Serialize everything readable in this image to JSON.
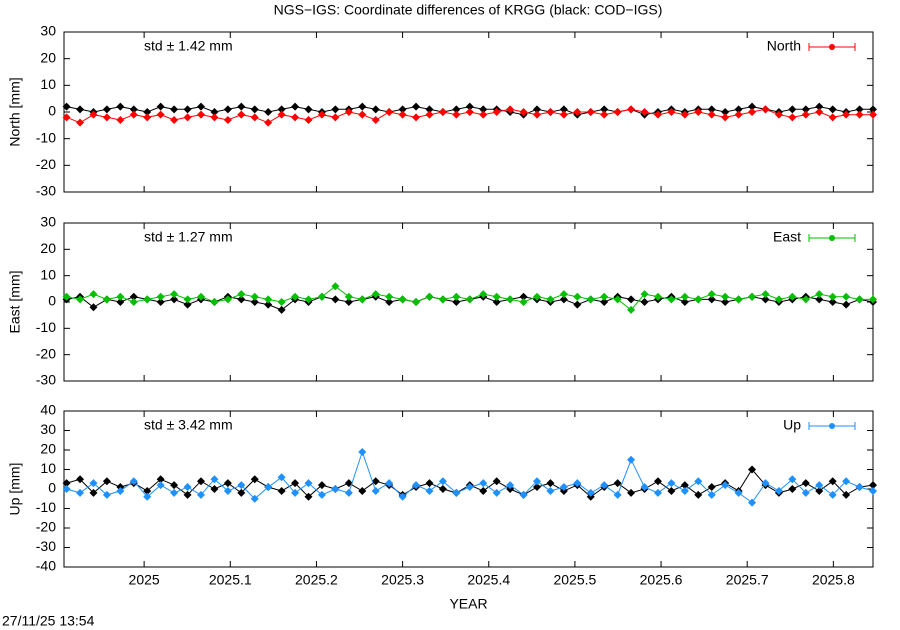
{
  "timestamp": "27/11/25 13:54",
  "chart_data": [
    {
      "type": "line",
      "title": "NGS−IGS: Coordinate differences of KRGG (black: COD−IGS)",
      "ylabel": "North [mm]",
      "annotation": "std ± 1.42 mm",
      "legend": "top right",
      "xlim": [
        2024.907,
        2025.846
      ],
      "xticks": [
        2025,
        2025.1,
        2025.2,
        2025.3,
        2025.4,
        2025.5,
        2025.6,
        2025.7,
        2025.8
      ],
      "ylim": [
        -30,
        30
      ],
      "yticks": [
        -30,
        -20,
        -10,
        0,
        10,
        20,
        30
      ],
      "x": [
        2024.91,
        2024.9256,
        2024.9412,
        2024.9568,
        2024.9724,
        2024.988,
        2025.0036,
        2025.0192,
        2025.0348,
        2025.0504,
        2025.066,
        2025.0816,
        2025.0972,
        2025.1128,
        2025.1284,
        2025.144,
        2025.1596,
        2025.1752,
        2025.1908,
        2025.2064,
        2025.222,
        2025.2376,
        2025.2532,
        2025.2688,
        2025.2844,
        2025.3,
        2025.3156,
        2025.3312,
        2025.3468,
        2025.3624,
        2025.378,
        2025.3936,
        2025.4092,
        2025.4248,
        2025.4404,
        2025.456,
        2025.4716,
        2025.4872,
        2025.5028,
        2025.5184,
        2025.534,
        2025.5496,
        2025.5652,
        2025.5808,
        2025.5964,
        2025.612,
        2025.6276,
        2025.6432,
        2025.6588,
        2025.6744,
        2025.69,
        2025.7056,
        2025.7212,
        2025.7368,
        2025.7524,
        2025.768,
        2025.7836,
        2025.7992,
        2025.8148,
        2025.8304,
        2025.846
      ],
      "series": [
        {
          "color": "#000000",
          "values": [
            2,
            1,
            0,
            1,
            2,
            1,
            0,
            2,
            1,
            1,
            2,
            0,
            1,
            2,
            1,
            0,
            1,
            2,
            1,
            0,
            1,
            1,
            2,
            1,
            0,
            1,
            2,
            1,
            0,
            1,
            2,
            1,
            1,
            0,
            -1,
            1,
            0,
            1,
            -1,
            0,
            1,
            0,
            1,
            -1,
            0,
            1,
            0,
            1,
            1,
            0,
            1,
            2,
            1,
            0,
            1,
            1,
            2,
            1,
            0,
            1,
            1
          ]
        },
        {
          "name": "North",
          "color": "#ff0000",
          "values": [
            -2,
            -4,
            -1,
            -2,
            -3,
            -1,
            -2,
            -1,
            -3,
            -2,
            -1,
            -2,
            -3,
            -1,
            -2,
            -4,
            -1,
            -2,
            -3,
            -1,
            -2,
            0,
            -1,
            -3,
            0,
            -1,
            -2,
            -1,
            0,
            -1,
            0,
            -1,
            0,
            1,
            0,
            -1,
            0,
            -1,
            0,
            0,
            -1,
            0,
            1,
            0,
            -1,
            0,
            -1,
            0,
            -1,
            -2,
            -1,
            0,
            1,
            -1,
            -2,
            -1,
            0,
            -2,
            -1,
            -1,
            -1
          ]
        }
      ]
    },
    {
      "type": "line",
      "ylabel": "East [mm]",
      "annotation": "std ± 1.27 mm",
      "legend": "top right",
      "xlim": [
        2024.907,
        2025.846
      ],
      "xticks": [
        2025,
        2025.1,
        2025.2,
        2025.3,
        2025.4,
        2025.5,
        2025.6,
        2025.7,
        2025.8
      ],
      "ylim": [
        -30,
        30
      ],
      "yticks": [
        -30,
        -20,
        -10,
        0,
        10,
        20,
        30
      ],
      "x": [
        2024.91,
        2024.9256,
        2024.9412,
        2024.9568,
        2024.9724,
        2024.988,
        2025.0036,
        2025.0192,
        2025.0348,
        2025.0504,
        2025.066,
        2025.0816,
        2025.0972,
        2025.1128,
        2025.1284,
        2025.144,
        2025.1596,
        2025.1752,
        2025.1908,
        2025.2064,
        2025.222,
        2025.2376,
        2025.2532,
        2025.2688,
        2025.2844,
        2025.3,
        2025.3156,
        2025.3312,
        2025.3468,
        2025.3624,
        2025.378,
        2025.3936,
        2025.4092,
        2025.4248,
        2025.4404,
        2025.456,
        2025.4716,
        2025.4872,
        2025.5028,
        2025.5184,
        2025.534,
        2025.5496,
        2025.5652,
        2025.5808,
        2025.5964,
        2025.612,
        2025.6276,
        2025.6432,
        2025.6588,
        2025.6744,
        2025.69,
        2025.7056,
        2025.7212,
        2025.7368,
        2025.7524,
        2025.768,
        2025.7836,
        2025.7992,
        2025.8148,
        2025.8304,
        2025.846
      ],
      "series": [
        {
          "color": "#000000",
          "values": [
            1,
            2,
            -2,
            1,
            0,
            2,
            1,
            0,
            1,
            -1,
            1,
            0,
            2,
            1,
            0,
            -1,
            -3,
            1,
            0,
            2,
            1,
            0,
            1,
            2,
            0,
            1,
            0,
            2,
            1,
            0,
            1,
            2,
            0,
            1,
            2,
            1,
            0,
            1,
            -1,
            1,
            0,
            2,
            1,
            0,
            1,
            2,
            0,
            1,
            1,
            0,
            1,
            2,
            1,
            0,
            1,
            2,
            1,
            0,
            -1,
            1,
            0
          ]
        },
        {
          "name": "East",
          "color": "#00c000",
          "values": [
            2,
            1,
            3,
            1,
            2,
            0,
            1,
            2,
            3,
            1,
            2,
            0,
            1,
            3,
            2,
            1,
            0,
            2,
            1,
            2,
            6,
            2,
            1,
            3,
            2,
            1,
            0,
            2,
            1,
            2,
            1,
            3,
            2,
            1,
            0,
            2,
            1,
            3,
            2,
            1,
            2,
            1,
            -3,
            3,
            2,
            1,
            2,
            1,
            3,
            2,
            1,
            2,
            3,
            1,
            2,
            1,
            3,
            2,
            2,
            1,
            1
          ]
        }
      ]
    },
    {
      "type": "line",
      "ylabel": "Up [mm]",
      "xlabel": "YEAR",
      "annotation": "std ± 3.42 mm",
      "legend": "top right",
      "xlim": [
        2024.907,
        2025.846
      ],
      "xticks": [
        2025,
        2025.1,
        2025.2,
        2025.3,
        2025.4,
        2025.5,
        2025.6,
        2025.7,
        2025.8
      ],
      "ylim": [
        -40,
        40
      ],
      "yticks": [
        -40,
        -30,
        -20,
        -10,
        0,
        10,
        20,
        30,
        40
      ],
      "x": [
        2024.91,
        2024.9256,
        2024.9412,
        2024.9568,
        2024.9724,
        2024.988,
        2025.0036,
        2025.0192,
        2025.0348,
        2025.0504,
        2025.066,
        2025.0816,
        2025.0972,
        2025.1128,
        2025.1284,
        2025.144,
        2025.1596,
        2025.1752,
        2025.1908,
        2025.2064,
        2025.222,
        2025.2376,
        2025.2532,
        2025.2688,
        2025.2844,
        2025.3,
        2025.3156,
        2025.3312,
        2025.3468,
        2025.3624,
        2025.378,
        2025.3936,
        2025.4092,
        2025.4248,
        2025.4404,
        2025.456,
        2025.4716,
        2025.4872,
        2025.5028,
        2025.5184,
        2025.534,
        2025.5496,
        2025.5652,
        2025.5808,
        2025.5964,
        2025.612,
        2025.6276,
        2025.6432,
        2025.6588,
        2025.6744,
        2025.69,
        2025.7056,
        2025.7212,
        2025.7368,
        2025.7524,
        2025.768,
        2025.7836,
        2025.7992,
        2025.8148,
        2025.8304,
        2025.846
      ],
      "series": [
        {
          "color": "#000000",
          "values": [
            3,
            5,
            -2,
            4,
            1,
            3,
            -1,
            5,
            2,
            -3,
            4,
            0,
            3,
            -2,
            5,
            1,
            -1,
            3,
            -4,
            2,
            0,
            3,
            -1,
            4,
            2,
            -3,
            1,
            3,
            0,
            -2,
            2,
            -1,
            4,
            0,
            -3,
            1,
            3,
            -1,
            2,
            -4,
            1,
            3,
            -2,
            0,
            4,
            -1,
            2,
            -3,
            1,
            3,
            -1,
            10,
            2,
            -2,
            0,
            3,
            -1,
            4,
            -3,
            1,
            2
          ]
        },
        {
          "name": "Up",
          "color": "#1e90ff",
          "values": [
            0,
            -2,
            3,
            -3,
            -1,
            4,
            -4,
            2,
            -2,
            1,
            -3,
            5,
            -1,
            2,
            -5,
            1,
            6,
            -2,
            3,
            -3,
            0,
            -2,
            19,
            -1,
            3,
            -4,
            2,
            -1,
            4,
            -2,
            1,
            3,
            -2,
            2,
            -3,
            4,
            -1,
            1,
            3,
            -2,
            2,
            -3,
            15,
            1,
            -2,
            3,
            -1,
            4,
            -3,
            2,
            -2,
            -7,
            3,
            -1,
            5,
            -2,
            2,
            -3,
            4,
            1,
            -1
          ]
        }
      ]
    }
  ]
}
